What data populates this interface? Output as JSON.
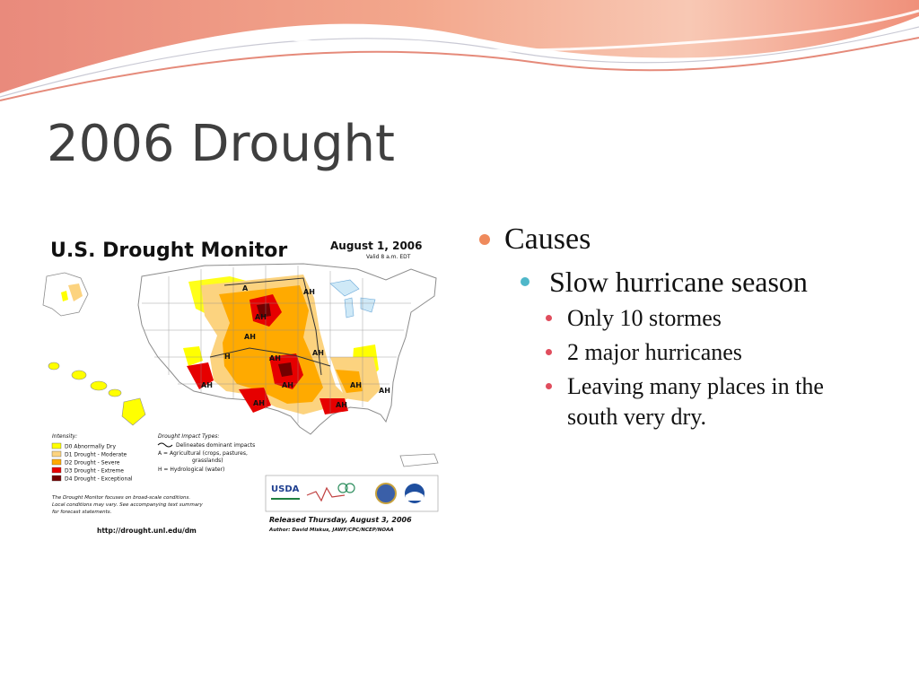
{
  "slide": {
    "title": "2006 Drought",
    "bullets": {
      "l1": "Causes",
      "l2": "Slow hurricane season",
      "l3": [
        "Only  10 stormes",
        "2 major hurricanes",
        "Leaving many places in the south very dry."
      ]
    }
  },
  "map": {
    "heading": "U.S. Drought Monitor",
    "date": "August 1, 2006",
    "valid": "Valid 8 a.m. EDT",
    "intensity_title": "Intensity:",
    "intensity": [
      {
        "label": "D0 Abnormally Dry",
        "color": "#ffff00"
      },
      {
        "label": "D1 Drought - Moderate",
        "color": "#fcd37f"
      },
      {
        "label": "D2 Drought - Severe",
        "color": "#ffaa00"
      },
      {
        "label": "D3 Drought - Extreme",
        "color": "#e60000"
      },
      {
        "label": "D4 Drought - Exceptional",
        "color": "#730000"
      }
    ],
    "impact_title": "Drought Impact Types:",
    "impact_lines": [
      "Delineates dominant impacts",
      "A = Agricultural (crops, pastures,",
      "grasslands)",
      "H = Hydrological (water)"
    ],
    "note": [
      "The Drought Monitor focuses on broad-scale conditions.",
      "Local conditions may vary. See accompanying text summary",
      "for forecast statements."
    ],
    "released": "Released Thursday, August 3, 2006",
    "author": "Author: David Miskus, JAWF/CPC/NCEP/NOAA",
    "url": "http://drought.unl.edu/dm",
    "usda": "USDA",
    "region_labels": [
      "A",
      "AH",
      "AH",
      "AH",
      "H",
      "AH",
      "AH",
      "AH",
      "AH",
      "AH",
      "AH",
      "AH",
      "AH"
    ]
  },
  "colors": {
    "accent_orange": "#ef8a5c",
    "accent_teal": "#4fb7c9",
    "accent_red": "#e04d5d",
    "title_gray": "#3f3f3f"
  }
}
